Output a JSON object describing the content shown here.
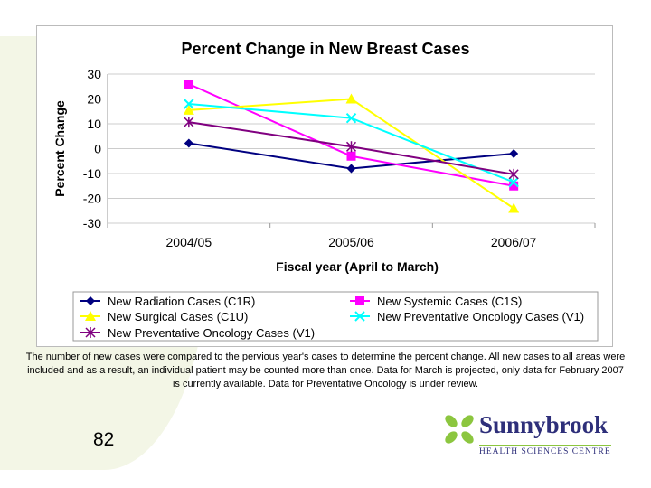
{
  "chart_data": {
    "type": "line",
    "title": "Percent Change in New Breast Cases",
    "xlabel": "Fiscal year (April to March)",
    "ylabel": "Percent Change",
    "categories": [
      "2004/05",
      "2005/06",
      "2006/07"
    ],
    "ylim": [
      -30,
      30
    ],
    "yticks": [
      30,
      20,
      10,
      0,
      -10,
      -20,
      -30
    ],
    "grid": true,
    "legend": "bottom",
    "series": [
      {
        "name": "New Radiation Cases (C1R)",
        "values": [
          2.2,
          -8,
          -2
        ],
        "color": "#000080",
        "marker": "diamond"
      },
      {
        "name": "New Systemic Cases (C1S)",
        "values": [
          26,
          -3,
          -15
        ],
        "color": "#ff00ff",
        "marker": "square"
      },
      {
        "name": "New Surgical Cases (C1U)",
        "values": [
          15.5,
          20,
          -24
        ],
        "color": "#ffff00",
        "marker": "triangle"
      },
      {
        "name": "New Preventative Oncology Cases (V1)",
        "values": [
          18,
          12.3,
          -13.5
        ],
        "color": "#00ffff",
        "marker": "x"
      },
      {
        "name": "New Preventative Oncology Cases (V1)",
        "values": [
          10.7,
          0.8,
          -10.3
        ],
        "color": "#800080",
        "marker": "star"
      }
    ]
  },
  "caption": "The number of new cases were compared to the pervious year's cases to determine the percent change. All new cases to all areas were included and as a result, an individual patient may be counted more than once. Data for March is projected, only data for February 2007 is currently available. Data for Preventative Oncology is under review.",
  "page_number": "82",
  "logo": {
    "name": "Sunnybrook",
    "subtitle": "HEALTH SCIENCES CENTRE"
  }
}
